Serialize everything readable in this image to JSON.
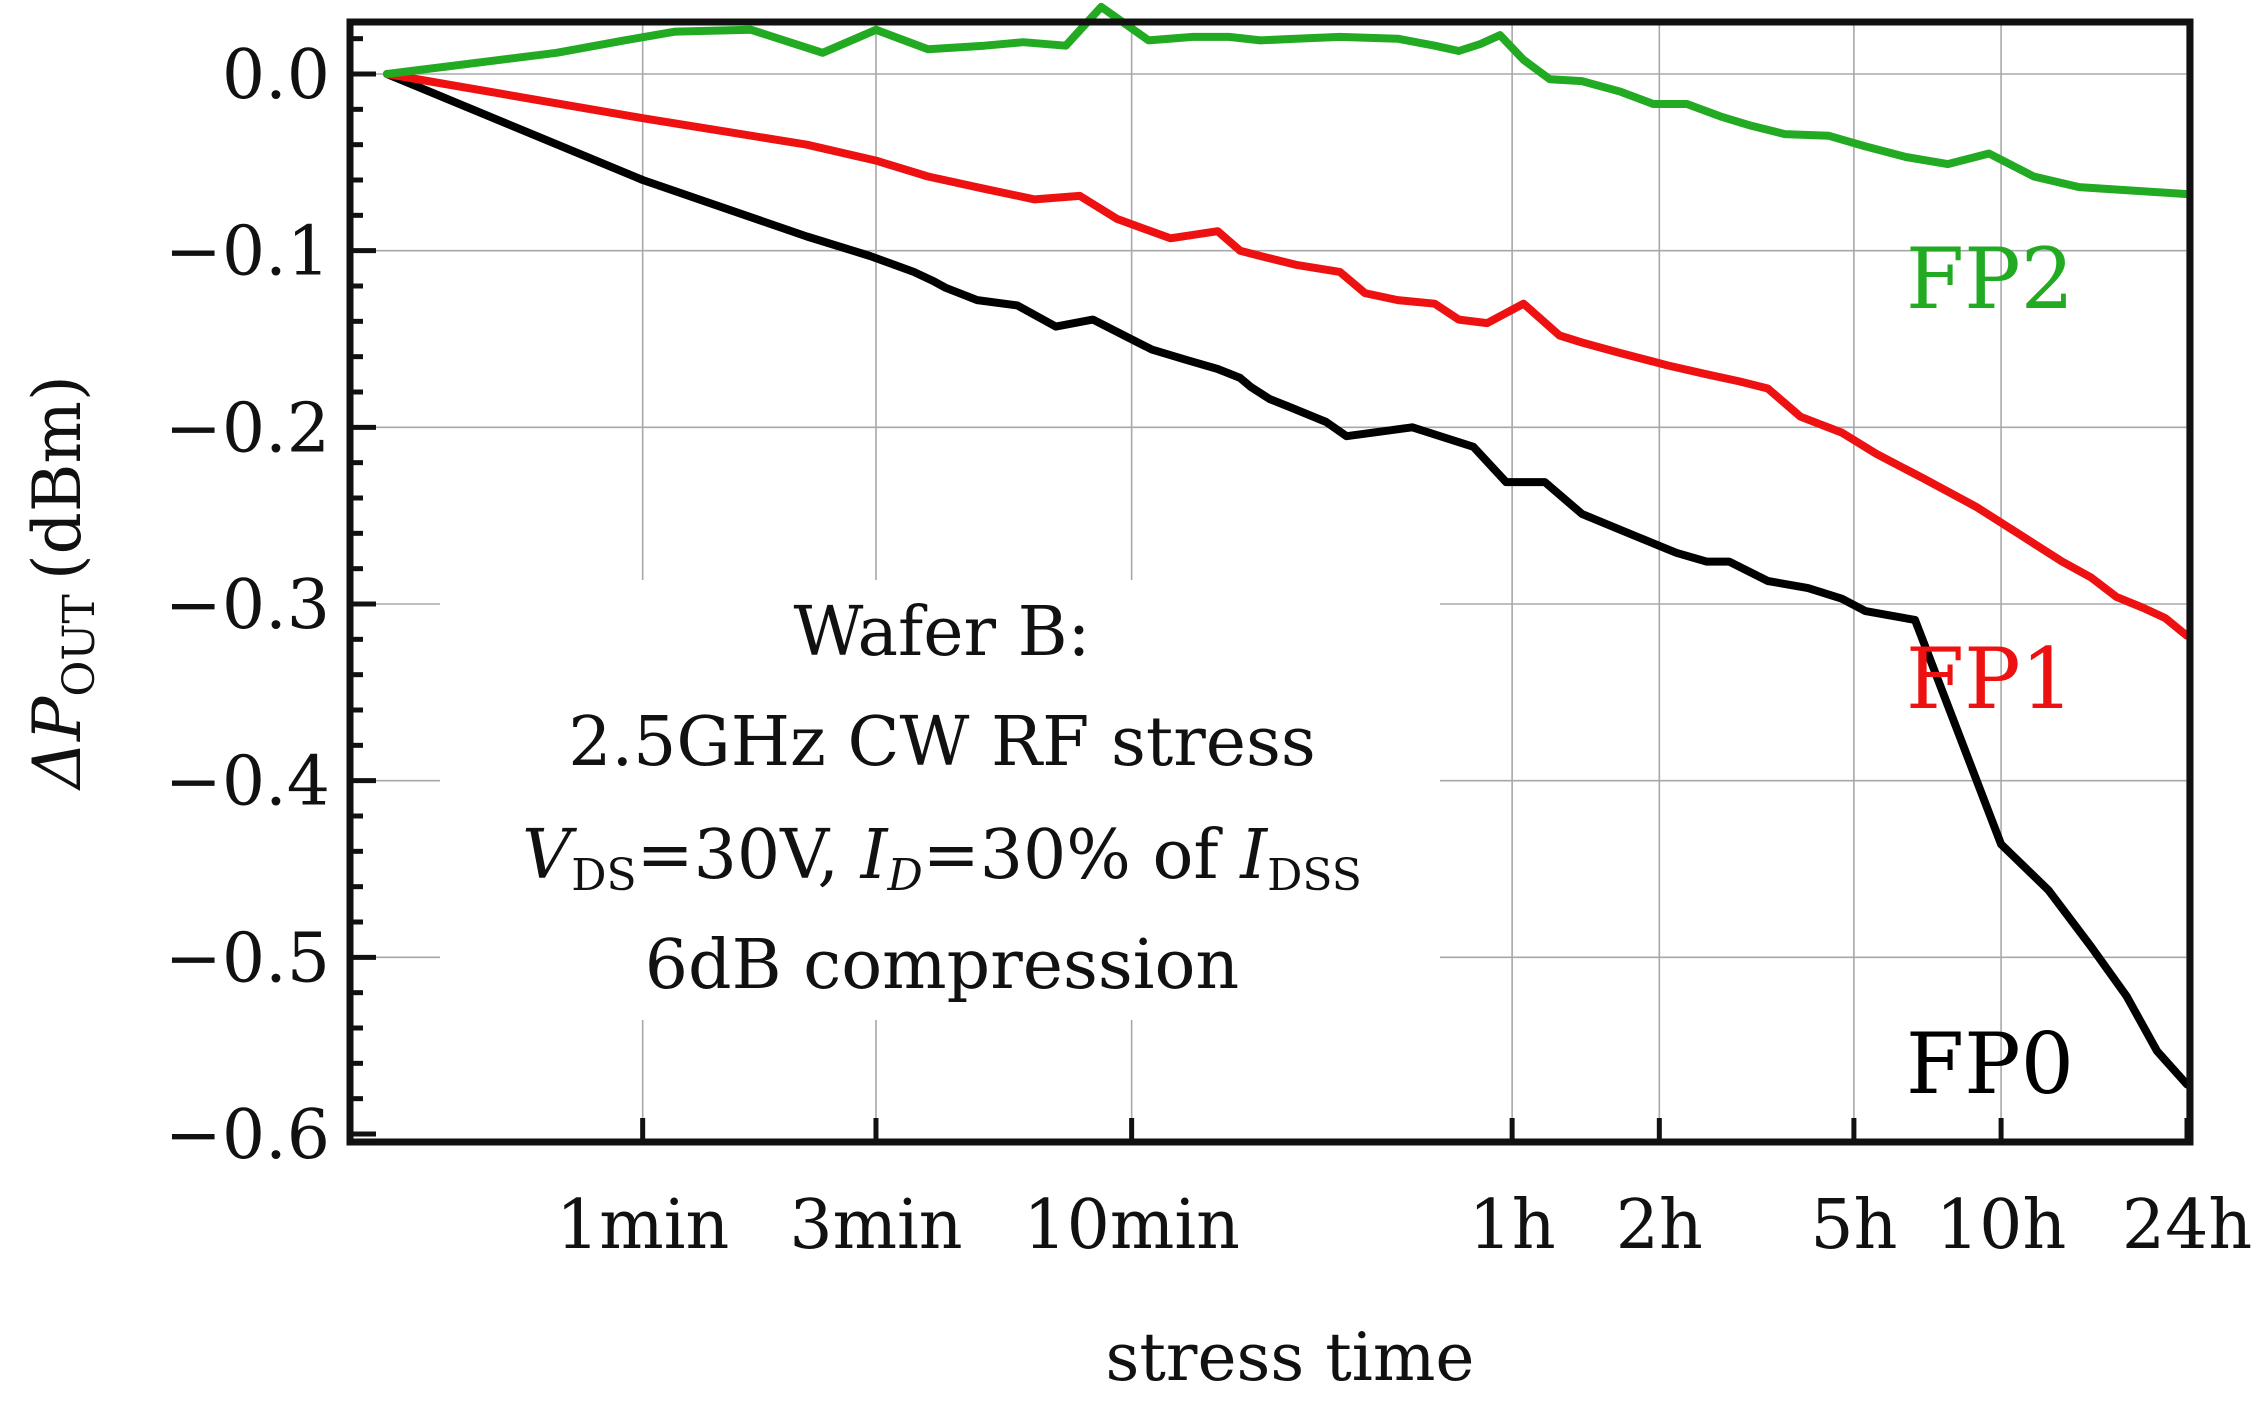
{
  "chart_data": {
    "type": "line",
    "title": "",
    "xlabel": "stress time",
    "ylabel": {
      "prefix": "ΔP",
      "subscript": "OUT",
      "unit": "(dBm)"
    },
    "x_unit": "seconds (log scale)",
    "xlim": [
      18,
      86400
    ],
    "ylim": [
      -0.6,
      0.05
    ],
    "grid": true,
    "x_ticks": [
      {
        "value": 60,
        "label": "1min"
      },
      {
        "value": 180,
        "label": "3min"
      },
      {
        "value": 600,
        "label": "10min"
      },
      {
        "value": 3600,
        "label": "1h"
      },
      {
        "value": 7200,
        "label": "2h"
      },
      {
        "value": 18000,
        "label": "5h"
      },
      {
        "value": 36000,
        "label": "10h"
      },
      {
        "value": 86400,
        "label": "24h"
      }
    ],
    "y_ticks": [
      {
        "value": 0.0,
        "label": "0.0"
      },
      {
        "value": -0.1,
        "label": "−0.1"
      },
      {
        "value": -0.2,
        "label": "−0.2"
      },
      {
        "value": -0.3,
        "label": "−0.3"
      },
      {
        "value": -0.4,
        "label": "−0.4"
      },
      {
        "value": -0.5,
        "label": "−0.5"
      },
      {
        "value": -0.6,
        "label": "−0.6"
      }
    ],
    "series": [
      {
        "name": "FP0",
        "label": "FP0",
        "color": "#000000",
        "x": [
          18,
          60,
          130,
          175,
          215,
          235,
          250,
          290,
          350,
          420,
          500,
          660,
          780,
          900,
          1000,
          1050,
          1150,
          1250,
          1500,
          1650,
          2250,
          3000,
          3500,
          4200,
          5000,
          6500,
          7800,
          9000,
          10000,
          12000,
          14500,
          17000,
          19000,
          24000,
          36000,
          45000,
          55000,
          65000,
          75000,
          86400
        ],
        "y": [
          0.0,
          -0.06,
          -0.092,
          -0.103,
          -0.112,
          -0.117,
          -0.121,
          -0.128,
          -0.131,
          -0.143,
          -0.139,
          -0.156,
          -0.162,
          -0.167,
          -0.172,
          -0.177,
          -0.184,
          -0.188,
          -0.197,
          -0.205,
          -0.2,
          -0.211,
          -0.231,
          -0.231,
          -0.249,
          -0.262,
          -0.271,
          -0.276,
          -0.276,
          -0.287,
          -0.291,
          -0.297,
          -0.304,
          -0.309,
          -0.436,
          -0.462,
          -0.494,
          -0.522,
          -0.553,
          -0.572
        ]
      },
      {
        "name": "FP1",
        "label": "FP1",
        "color": "#ee1111",
        "x": [
          18,
          60,
          130,
          180,
          230,
          300,
          380,
          470,
          560,
          720,
          900,
          1000,
          1100,
          1300,
          1600,
          1800,
          2100,
          2500,
          2800,
          3200,
          3800,
          4500,
          5000,
          6000,
          7500,
          9000,
          10500,
          12000,
          14000,
          17000,
          20000,
          25000,
          32000,
          40000,
          48000,
          55000,
          62000,
          70000,
          78000,
          86400
        ],
        "y": [
          0.0,
          -0.025,
          -0.04,
          -0.049,
          -0.058,
          -0.065,
          -0.071,
          -0.069,
          -0.082,
          -0.093,
          -0.089,
          -0.1,
          -0.103,
          -0.108,
          -0.112,
          -0.124,
          -0.128,
          -0.13,
          -0.139,
          -0.141,
          -0.13,
          -0.148,
          -0.152,
          -0.158,
          -0.165,
          -0.17,
          -0.174,
          -0.178,
          -0.194,
          -0.203,
          -0.215,
          -0.229,
          -0.245,
          -0.262,
          -0.276,
          -0.285,
          -0.296,
          -0.302,
          -0.308,
          -0.318
        ]
      },
      {
        "name": "FP2",
        "label": "FP2",
        "color": "#22aa22",
        "x": [
          18,
          40,
          55,
          70,
          100,
          140,
          180,
          230,
          300,
          360,
          440,
          520,
          650,
          800,
          950,
          1100,
          1300,
          1600,
          2100,
          2500,
          2800,
          3100,
          3400,
          3800,
          4300,
          5000,
          6000,
          7000,
          8200,
          9600,
          11000,
          13000,
          16000,
          19000,
          23000,
          28000,
          34000,
          42000,
          52000,
          86400
        ],
        "y": [
          0.0,
          0.012,
          0.019,
          0.024,
          0.025,
          0.012,
          0.025,
          0.014,
          0.016,
          0.018,
          0.016,
          0.038,
          0.019,
          0.021,
          0.021,
          0.019,
          0.02,
          0.021,
          0.02,
          0.016,
          0.013,
          0.017,
          0.022,
          0.008,
          -0.003,
          -0.004,
          -0.01,
          -0.017,
          -0.017,
          -0.024,
          -0.029,
          -0.034,
          -0.035,
          -0.041,
          -0.047,
          -0.051,
          -0.045,
          -0.058,
          -0.064,
          -0.068
        ]
      }
    ],
    "annotations": [
      {
        "name": "wafer",
        "text": "Wafer B:"
      },
      {
        "name": "freq",
        "text": "2.5GHz CW RF stress"
      },
      {
        "name": "bias",
        "v": "V",
        "v_sub": "DS",
        "v_val": "=30V, ",
        "i": "I",
        "i_sub": "D",
        "i_val": "=30% of ",
        "i2": "I",
        "i2_sub": "DSS"
      },
      {
        "name": "compression",
        "text": "6dB compression"
      }
    ]
  }
}
